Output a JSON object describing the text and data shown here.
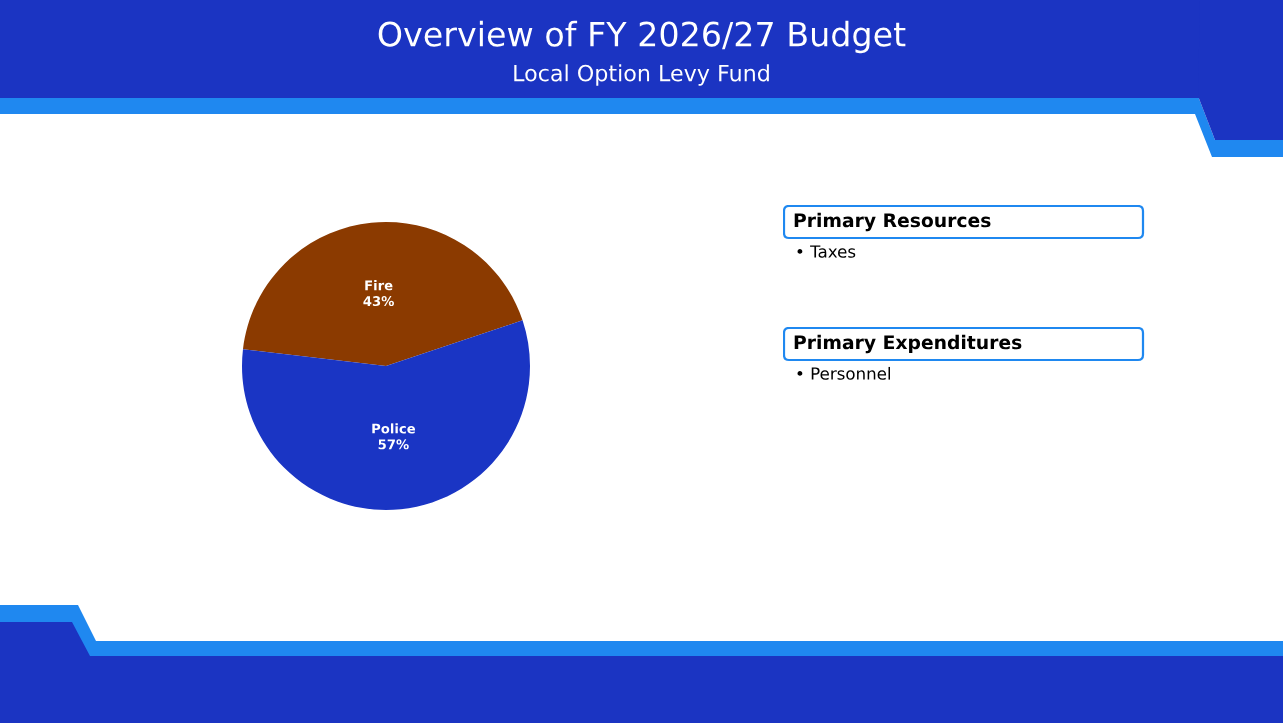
{
  "chart_data": [
    {
      "type": "pie",
      "title": "Overview of FY 2026/27 Budget",
      "subtitle": "Local Option Levy Fund",
      "categories": [
        "Fire",
        "Police"
      ],
      "values": [
        43,
        57
      ],
      "colors": [
        "#8b3a00",
        "#1a35c4"
      ],
      "value_labels": [
        "43%",
        "57%"
      ]
    },
    {
      "type": "other",
      "title": "Primary Resources",
      "annotations": [
        "• Taxes"
      ]
    },
    {
      "type": "other",
      "title": "Primary Expenditures",
      "annotations": [
        "• Personnel"
      ]
    }
  ]
}
